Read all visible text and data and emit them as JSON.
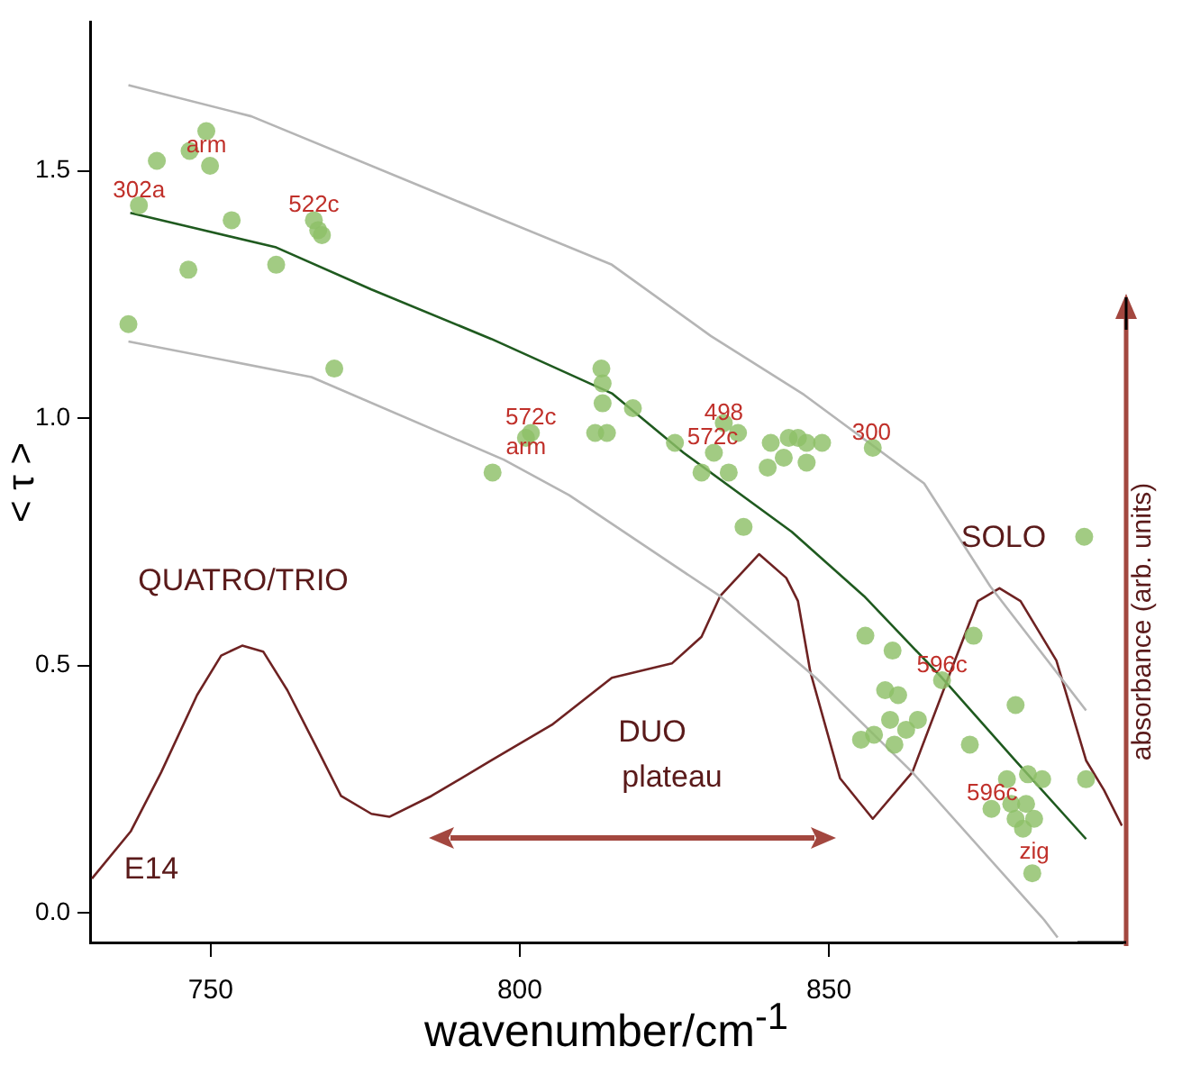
{
  "chart_data": {
    "type": "scatter",
    "xlabel": "wavenumber/cm$^{-1}$",
    "ylabel": "< τ >",
    "y2label": "absorbance (arb. units)",
    "xlim": [
      730.5,
      897.5
    ],
    "xticks": [
      750,
      800,
      850
    ],
    "ylim": [
      -0.06,
      1.8
    ],
    "yticks": [
      {
        "value": 0,
        "label": "0.0"
      },
      0.5,
      {
        "value": 1,
        "label": "1.0"
      },
      1.5
    ],
    "grid": false,
    "legend": false,
    "series": [
      {
        "marker": "circle",
        "color": "#8dbf67",
        "x": [
          749.3,
          741.3,
          746.6,
          749.9,
          738.4,
          753.4,
          766.7,
          767.4,
          768,
          746.4,
          760.6,
          736.7,
          770,
          801.8,
          801,
          795.6,
          813.2,
          813.4,
          813.4,
          818.3,
          812.2,
          814.1,
          825.1,
          833,
          835.3,
          831.4,
          829.4,
          833.8,
          836.2,
          840.6,
          840.1,
          842.7,
          843.5,
          845,
          846.4,
          846.4,
          848.9,
          857.1,
          891.3,
          855.9,
          860.3,
          859.1,
          861.2,
          868.3,
          873.4,
          880.2,
          859.9,
          864.4,
          862.5,
          857.3,
          855.2,
          860.6,
          872.8,
          878.8,
          882.2,
          884.5,
          891.6,
          876.3,
          879.5,
          881.9,
          880.2,
          883.2,
          881.4,
          882.9
        ],
        "values": [
          1.58,
          1.52,
          1.54,
          1.51,
          1.43,
          1.4,
          1.4,
          1.38,
          1.37,
          1.3,
          1.31,
          1.19,
          1.1,
          0.97,
          0.96,
          0.89,
          1.1,
          1.07,
          1.03,
          1.02,
          0.97,
          0.97,
          0.95,
          0.99,
          0.97,
          0.93,
          0.89,
          0.89,
          0.78,
          0.95,
          0.9,
          0.92,
          0.96,
          0.96,
          0.95,
          0.91,
          0.95,
          0.94,
          0.76,
          0.56,
          0.53,
          0.45,
          0.44,
          0.47,
          0.56,
          0.42,
          0.39,
          0.39,
          0.37,
          0.36,
          0.35,
          0.34,
          0.34,
          0.27,
          0.28,
          0.27,
          0.27,
          0.21,
          0.22,
          0.22,
          0.19,
          0.19,
          0.17,
          0.08
        ]
      },
      {
        "type": "line",
        "marker": "none",
        "color": "#1f5a1f",
        "x": [
          737,
          760.6,
          776,
          795.4,
          814.9,
          826.5,
          844,
          855.7,
          868.3,
          880,
          891.6
        ],
        "values": [
          1.415,
          1.345,
          1.26,
          1.16,
          1.05,
          0.93,
          0.77,
          0.64,
          0.475,
          0.31,
          0.149
        ]
      },
      {
        "type": "line",
        "marker": "none",
        "color": "#b5b5b5",
        "x": [
          736.7,
          756.6,
          785.7,
          814.9,
          830.9,
          846,
          865.4,
          876.1,
          891.6
        ],
        "values": [
          1.673,
          1.61,
          1.46,
          1.31,
          1.166,
          1.047,
          0.868,
          0.66,
          0.409
        ]
      },
      {
        "type": "line",
        "marker": "none",
        "color": "#b5b5b5",
        "x": [
          736.7,
          766.3,
          797.4,
          808,
          832.4,
          847.9,
          863.5,
          884.8,
          887
        ],
        "values": [
          1.155,
          1.083,
          0.916,
          0.844,
          0.64,
          0.475,
          0.284,
          -0.014,
          -0.05
        ]
      },
      {
        "type": "line",
        "marker": "none",
        "color": "#6e2222",
        "x": [
          730.8,
          737.1,
          742,
          747.8,
          751.7,
          755.1,
          758.5,
          762.4,
          767.3,
          771.1,
          776,
          778.9,
          785.7,
          795.4,
          805.2,
          814.9,
          824.6,
          829.4,
          832.4,
          838.7,
          843.1,
          845,
          847,
          851.8,
          857.1,
          863.5,
          869.3,
          874.1,
          877.6,
          881,
          886.8,
          891.6,
          894.5,
          897.4
        ],
        "values": [
          0.069,
          0.165,
          0.284,
          0.44,
          0.52,
          0.54,
          0.528,
          0.45,
          0.33,
          0.236,
          0.2,
          0.194,
          0.236,
          0.308,
          0.38,
          0.475,
          0.504,
          0.558,
          0.64,
          0.725,
          0.677,
          0.63,
          0.487,
          0.272,
          0.19,
          0.284,
          0.475,
          0.63,
          0.656,
          0.63,
          0.51,
          0.308,
          0.248,
          0.176
        ]
      }
    ],
    "annotations": [
      {
        "text": "302a",
        "x": 738.4,
        "y": 1.46
      },
      {
        "text": "arm",
        "x": 749.3,
        "y": 1.55
      },
      {
        "text": "522c",
        "x": 766.7,
        "y": 1.43
      },
      {
        "text": "572c",
        "x": 801.8,
        "y": 1.0
      },
      {
        "text": "arm",
        "x": 801,
        "y": 0.94
      },
      {
        "text": "498",
        "x": 833,
        "y": 1.01
      },
      {
        "text": "572c",
        "x": 831.2,
        "y": 0.96
      },
      {
        "text": "300",
        "x": 856.9,
        "y": 0.97
      },
      {
        "text": "596c",
        "x": 868.3,
        "y": 0.5
      },
      {
        "text": "596c",
        "x": 876.4,
        "y": 0.24
      },
      "zig",
      "QUATRO/TRIO",
      "DUO",
      "plateau",
      "SOLO",
      "E14"
    ]
  }
}
